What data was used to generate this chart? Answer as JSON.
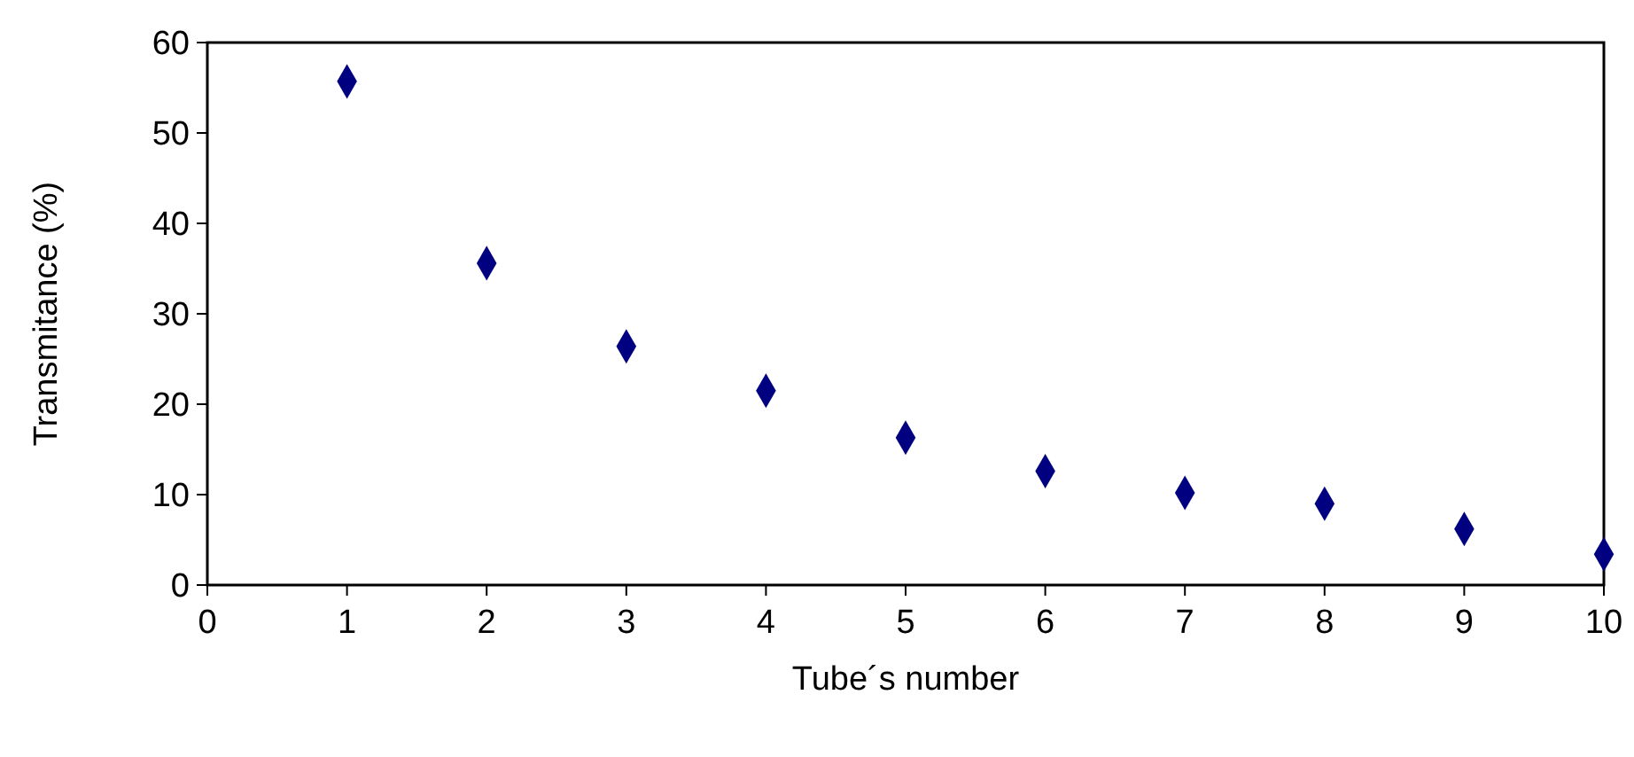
{
  "chart_data": {
    "type": "scatter",
    "xlabel": "Tube´s number",
    "ylabel": "Transmitance (%)",
    "x": [
      1,
      2,
      3,
      4,
      5,
      6,
      7,
      8,
      9,
      10
    ],
    "series": [
      {
        "color": "#000080",
        "values": [
          55.7,
          35.6,
          26.4,
          21.5,
          16.3,
          12.6,
          10.2,
          9.0,
          6.2,
          3.4
        ]
      }
    ],
    "xlim": [
      0,
      10
    ],
    "xticks": [
      0,
      1,
      2,
      3,
      4,
      5,
      6,
      7,
      8,
      9,
      10
    ],
    "ylim": [
      0,
      60
    ],
    "yticks": [
      0,
      10,
      20,
      30,
      40,
      50,
      60
    ],
    "marker": "diamond",
    "grid": false
  }
}
